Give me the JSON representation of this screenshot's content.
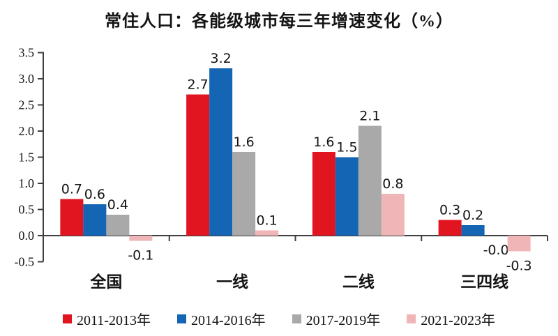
{
  "title": "常住人口：各能级城市每三年增速变化（%）",
  "colors": {
    "background": "#ffffff",
    "axis": "#3f3f3f",
    "text": "#141414",
    "series_red": "#e01520",
    "series_blue": "#1465b4",
    "series_gray": "#a9a9a9",
    "series_pink": "#f0b5b7"
  },
  "chart_data": {
    "type": "bar",
    "title": "常住人口：各能级城市每三年增速变化（%）",
    "categories": [
      "全国",
      "一线",
      "二线",
      "三四线"
    ],
    "series": [
      {
        "name": "2011-2013年",
        "color": "#e01520",
        "values": [
          0.7,
          2.7,
          1.6,
          0.3
        ],
        "labels": [
          "0.7",
          "2.7",
          "1.6",
          "0.3"
        ]
      },
      {
        "name": "2014-2016年",
        "color": "#1465b4",
        "values": [
          0.6,
          3.2,
          1.5,
          0.2
        ],
        "labels": [
          "0.6",
          "3.2",
          "1.5",
          "0.2"
        ]
      },
      {
        "name": "2017-2019年",
        "color": "#a9a9a9",
        "values": [
          0.4,
          1.6,
          2.1,
          0.0
        ],
        "labels": [
          "0.4",
          "1.6",
          "2.1",
          "-0.0"
        ]
      },
      {
        "name": "2021-2023年",
        "color": "#f0b5b7",
        "values": [
          -0.1,
          0.1,
          0.8,
          -0.3
        ],
        "labels": [
          "-0.1",
          "0.1",
          "0.8",
          "-0.3"
        ]
      }
    ],
    "xlabel": "",
    "ylabel": "",
    "ylim": [
      -0.5,
      3.5
    ],
    "ytick_step": 0.5,
    "yticks": [
      "3.5",
      "3.0",
      "2.5",
      "2.0",
      "1.5",
      "1.0",
      "0.5",
      "0.0",
      "-0.5"
    ],
    "grid": false,
    "legend_position": "bottom"
  }
}
